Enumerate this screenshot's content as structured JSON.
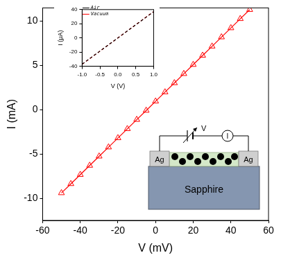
{
  "chart_data": [
    {
      "type": "scatter",
      "x_label": "V (mV)",
      "y_label": "I (mA)",
      "x": [
        -50,
        -45,
        -40,
        -35,
        -30,
        -25,
        -20,
        -15,
        -10,
        -5,
        0,
        5,
        10,
        15,
        20,
        25,
        30,
        35,
        40,
        45,
        50
      ],
      "values": [
        -9.4,
        -8.37,
        -7.33,
        -6.3,
        -5.26,
        -4.23,
        -3.19,
        -2.16,
        -1.12,
        -0.09,
        0.95,
        1.99,
        3.02,
        4.06,
        5.09,
        6.13,
        7.16,
        8.2,
        9.23,
        10.27,
        11.3
      ],
      "color": "#ff0000",
      "marker": "triangle",
      "line_style": "solid",
      "xlim": [
        -60,
        60
      ],
      "xticks": [
        -60,
        -40,
        -20,
        0,
        20,
        40,
        60
      ],
      "ylim": [
        -12.5,
        11.5
      ],
      "yticks": [
        -10,
        -5,
        0,
        5,
        10
      ],
      "grid": false
    },
    {
      "type": "line",
      "x_label": "V (V)",
      "y_label": "I (μA)",
      "x": [
        -1,
        -0.5,
        0,
        0.5,
        1
      ],
      "series": [
        {
          "name": "Air",
          "color": "#000000",
          "line_style": "dashed",
          "marker": "none",
          "values": [
            -37,
            -18.5,
            0,
            18.5,
            37
          ]
        },
        {
          "name": "Vacuum",
          "color": "#ff0000",
          "line_style": "dashed",
          "marker": "none",
          "values": [
            -37.2,
            -18.6,
            0,
            18.6,
            37.2
          ]
        }
      ],
      "xlim": [
        -1,
        1
      ],
      "xticks": [
        {
          "value": -1,
          "label": "-1.0"
        },
        -0.5,
        {
          "value": 0,
          "label": "0.0"
        },
        0.5,
        {
          "value": 1,
          "label": "1.0"
        }
      ],
      "ylim": [
        -40,
        40
      ],
      "yticks": [
        -40,
        -20,
        0,
        20,
        40
      ],
      "legend": "upper left",
      "grid": false
    }
  ],
  "diagram": {
    "left_electrode": "Ag",
    "right_electrode": "Ag",
    "substrate": "Sapphire",
    "voltage": "V",
    "current": "I"
  }
}
